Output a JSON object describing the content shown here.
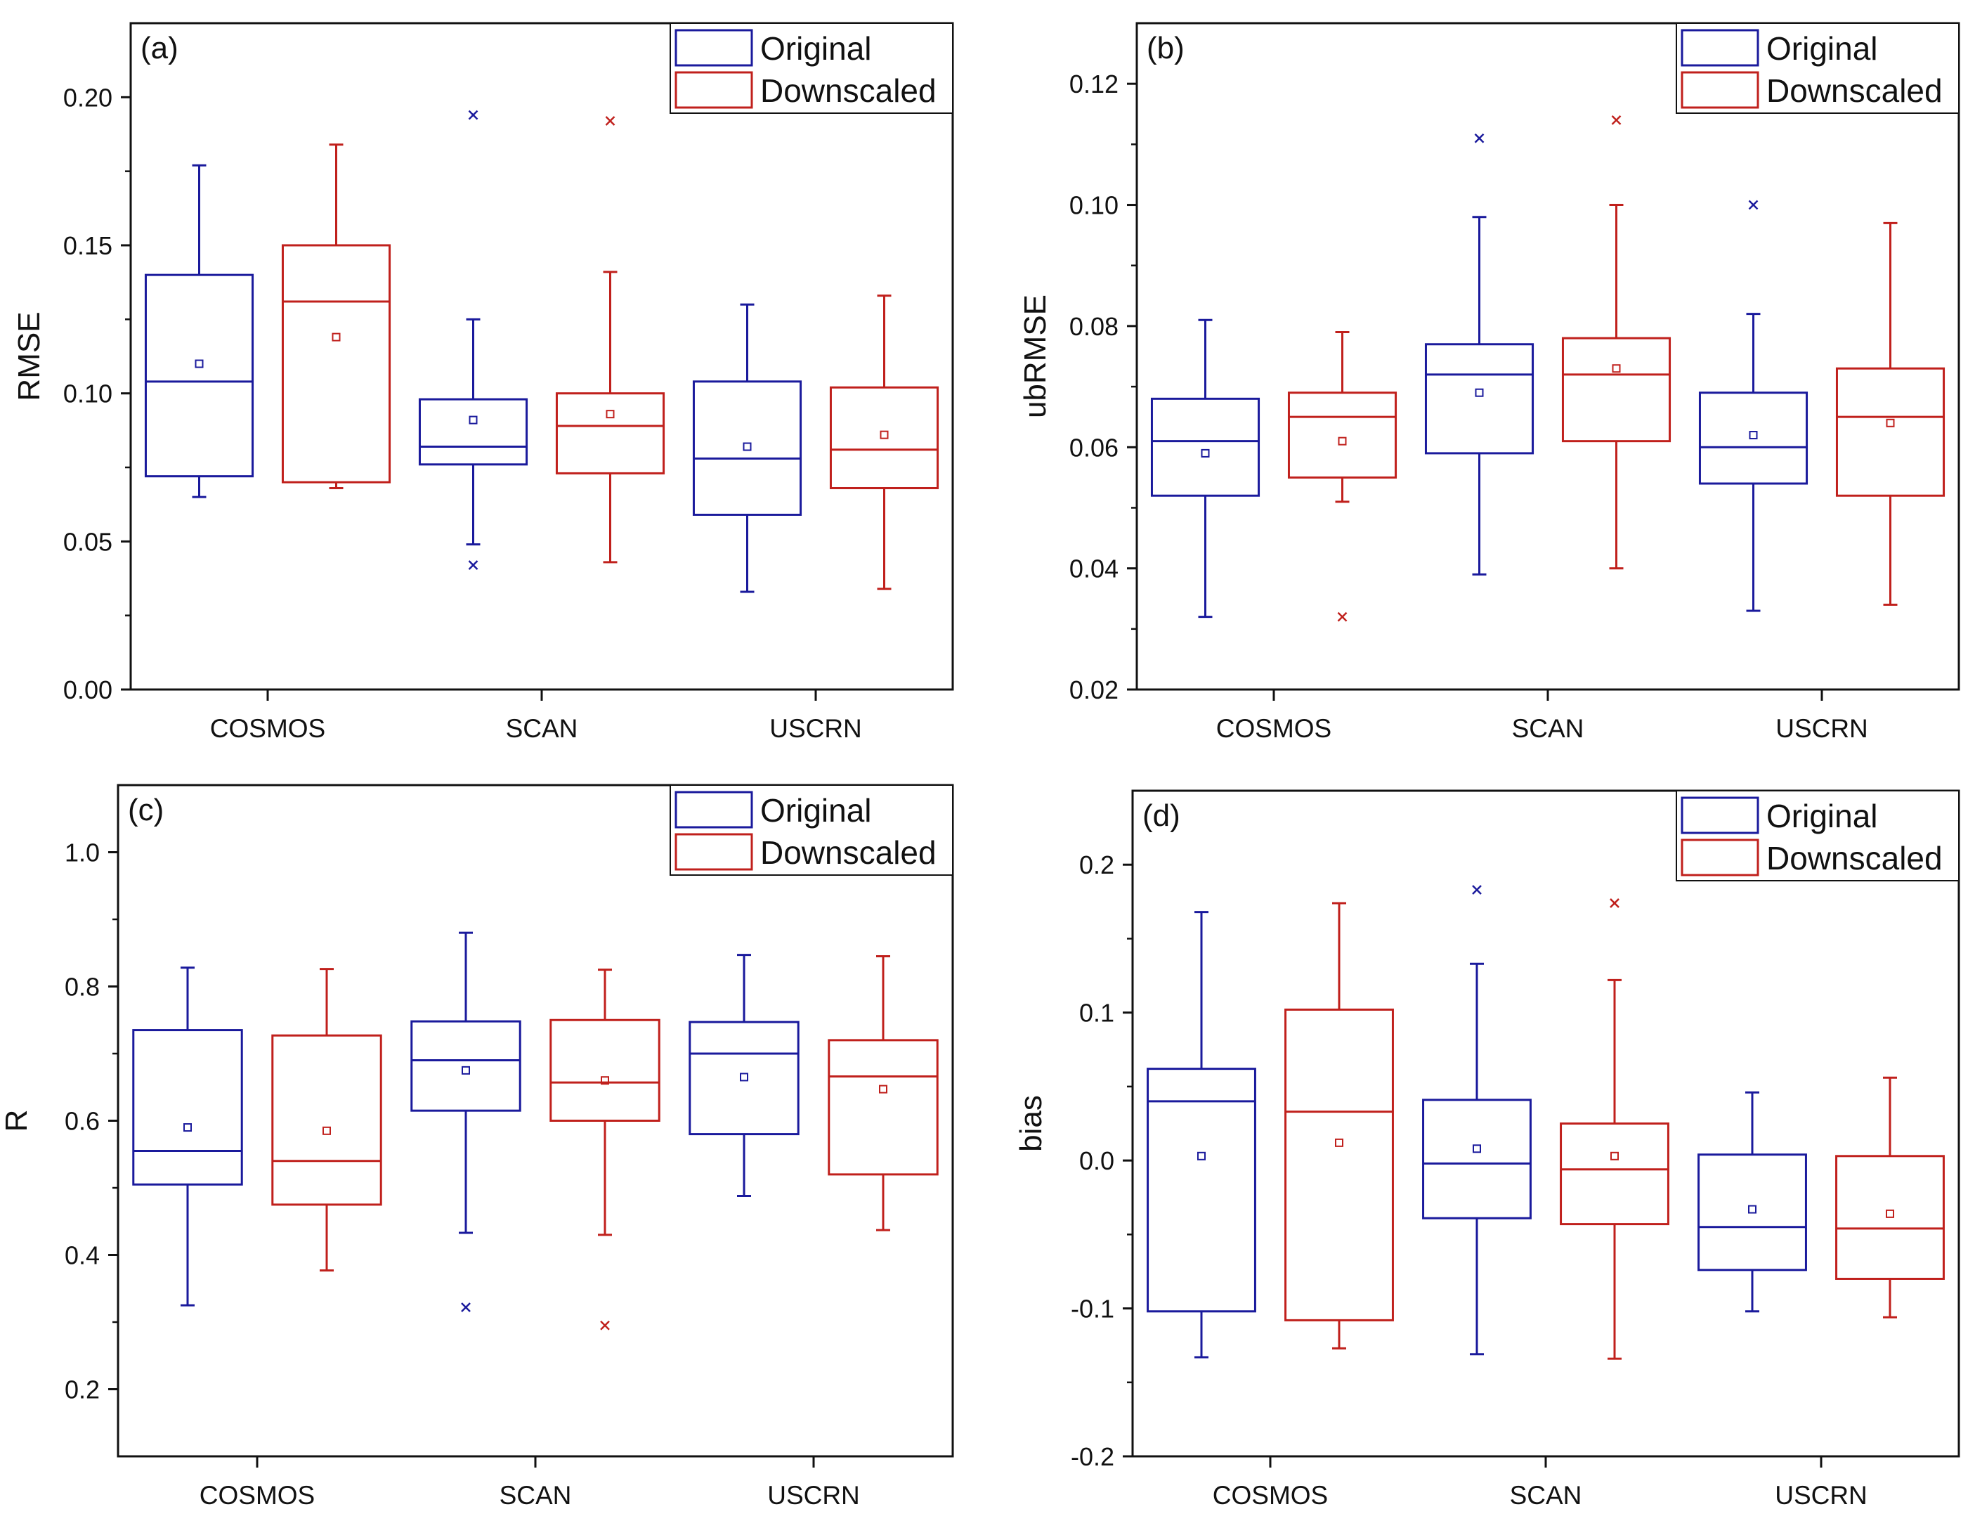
{
  "colors": {
    "original": "#1a1a9c",
    "downscaled": "#c0201c",
    "axis": "#111111"
  },
  "chart_data": [
    {
      "type": "box",
      "panel": "(a)",
      "ylabel": "RMSE",
      "ylim": [
        0,
        0.225
      ],
      "yticks": [
        0.0,
        0.05,
        0.1,
        0.15,
        0.2
      ],
      "ytick_labels": [
        "0.00",
        "0.05",
        "0.10",
        "0.15",
        "0.20"
      ],
      "categories": [
        "COSMOS",
        "SCAN",
        "USCRN"
      ],
      "legend": {
        "position": "top-right",
        "entries": [
          "Original",
          "Downscaled"
        ]
      },
      "series": [
        {
          "name": "Original",
          "boxes": [
            {
              "min": 0.065,
              "q1": 0.072,
              "median": 0.104,
              "q3": 0.14,
              "max": 0.177,
              "mean": 0.11,
              "outliers": []
            },
            {
              "min": 0.049,
              "q1": 0.076,
              "median": 0.082,
              "q3": 0.098,
              "max": 0.125,
              "mean": 0.091,
              "outliers": [
                0.194,
                0.042
              ]
            },
            {
              "min": 0.033,
              "q1": 0.059,
              "median": 0.078,
              "q3": 0.104,
              "max": 0.13,
              "mean": 0.082,
              "outliers": []
            }
          ]
        },
        {
          "name": "Downscaled",
          "boxes": [
            {
              "min": 0.068,
              "q1": 0.07,
              "median": 0.131,
              "q3": 0.15,
              "max": 0.184,
              "mean": 0.119,
              "outliers": []
            },
            {
              "min": 0.043,
              "q1": 0.073,
              "median": 0.089,
              "q3": 0.1,
              "max": 0.141,
              "mean": 0.093,
              "outliers": [
                0.192
              ]
            },
            {
              "min": 0.034,
              "q1": 0.068,
              "median": 0.081,
              "q3": 0.102,
              "max": 0.133,
              "mean": 0.086,
              "outliers": []
            }
          ]
        }
      ]
    },
    {
      "type": "box",
      "panel": "(b)",
      "ylabel": "ubRMSE",
      "ylim": [
        0.02,
        0.13
      ],
      "yticks": [
        0.02,
        0.04,
        0.06,
        0.08,
        0.1,
        0.12
      ],
      "ytick_labels": [
        "0.02",
        "0.04",
        "0.06",
        "0.08",
        "0.10",
        "0.12"
      ],
      "categories": [
        "COSMOS",
        "SCAN",
        "USCRN"
      ],
      "legend": {
        "position": "top-right",
        "entries": [
          "Original",
          "Downscaled"
        ]
      },
      "series": [
        {
          "name": "Original",
          "boxes": [
            {
              "min": 0.032,
              "q1": 0.052,
              "median": 0.061,
              "q3": 0.068,
              "max": 0.081,
              "mean": 0.059,
              "outliers": []
            },
            {
              "min": 0.039,
              "q1": 0.059,
              "median": 0.072,
              "q3": 0.077,
              "max": 0.098,
              "mean": 0.069,
              "outliers": [
                0.111
              ]
            },
            {
              "min": 0.033,
              "q1": 0.054,
              "median": 0.06,
              "q3": 0.069,
              "max": 0.082,
              "mean": 0.062,
              "outliers": [
                0.1
              ]
            }
          ]
        },
        {
          "name": "Downscaled",
          "boxes": [
            {
              "min": 0.051,
              "q1": 0.055,
              "median": 0.065,
              "q3": 0.069,
              "max": 0.079,
              "mean": 0.061,
              "outliers": [
                0.032
              ]
            },
            {
              "min": 0.04,
              "q1": 0.061,
              "median": 0.072,
              "q3": 0.078,
              "max": 0.1,
              "mean": 0.073,
              "outliers": [
                0.114
              ]
            },
            {
              "min": 0.034,
              "q1": 0.052,
              "median": 0.065,
              "q3": 0.073,
              "max": 0.097,
              "mean": 0.064,
              "outliers": []
            }
          ]
        }
      ]
    },
    {
      "type": "box",
      "panel": "(c)",
      "ylabel": "R",
      "ylim": [
        0.1,
        1.1
      ],
      "yticks": [
        0.2,
        0.4,
        0.6,
        0.8,
        1.0
      ],
      "ytick_labels": [
        "0.2",
        "0.4",
        "0.6",
        "0.8",
        "1.0"
      ],
      "categories": [
        "COSMOS",
        "SCAN",
        "USCRN"
      ],
      "legend": {
        "position": "top-right",
        "entries": [
          "Original",
          "Downscaled"
        ]
      },
      "series": [
        {
          "name": "Original",
          "boxes": [
            {
              "min": 0.325,
              "q1": 0.505,
              "median": 0.555,
              "q3": 0.735,
              "max": 0.828,
              "mean": 0.59,
              "outliers": []
            },
            {
              "min": 0.433,
              "q1": 0.615,
              "median": 0.69,
              "q3": 0.748,
              "max": 0.88,
              "mean": 0.675,
              "outliers": [
                0.322
              ]
            },
            {
              "min": 0.488,
              "q1": 0.58,
              "median": 0.7,
              "q3": 0.747,
              "max": 0.847,
              "mean": 0.665,
              "outliers": []
            }
          ]
        },
        {
          "name": "Downscaled",
          "boxes": [
            {
              "min": 0.377,
              "q1": 0.475,
              "median": 0.54,
              "q3": 0.727,
              "max": 0.826,
              "mean": 0.585,
              "outliers": []
            },
            {
              "min": 0.43,
              "q1": 0.6,
              "median": 0.657,
              "q3": 0.75,
              "max": 0.825,
              "mean": 0.66,
              "outliers": [
                0.295
              ]
            },
            {
              "min": 0.437,
              "q1": 0.52,
              "median": 0.666,
              "q3": 0.72,
              "max": 0.845,
              "mean": 0.647,
              "outliers": []
            }
          ]
        }
      ]
    },
    {
      "type": "box",
      "panel": "(d)",
      "ylabel": "bias",
      "ylim": [
        -0.2,
        0.25
      ],
      "yticks": [
        -0.2,
        -0.1,
        0.0,
        0.1,
        0.2
      ],
      "ytick_labels": [
        "-0.2",
        "-0.1",
        "0.0",
        "0.1",
        "0.2"
      ],
      "categories": [
        "COSMOS",
        "SCAN",
        "USCRN"
      ],
      "legend": {
        "position": "top-right",
        "entries": [
          "Original",
          "Downscaled"
        ]
      },
      "series": [
        {
          "name": "Original",
          "boxes": [
            {
              "min": -0.133,
              "q1": -0.102,
              "median": 0.04,
              "q3": 0.062,
              "max": 0.168,
              "mean": 0.003,
              "outliers": []
            },
            {
              "min": -0.131,
              "q1": -0.039,
              "median": -0.002,
              "q3": 0.041,
              "max": 0.133,
              "mean": 0.008,
              "outliers": [
                0.183
              ]
            },
            {
              "min": -0.102,
              "q1": -0.074,
              "median": -0.045,
              "q3": 0.004,
              "max": 0.046,
              "mean": -0.033,
              "outliers": []
            }
          ]
        },
        {
          "name": "Downscaled",
          "boxes": [
            {
              "min": -0.127,
              "q1": -0.108,
              "median": 0.033,
              "q3": 0.102,
              "max": 0.174,
              "mean": 0.012,
              "outliers": []
            },
            {
              "min": -0.134,
              "q1": -0.043,
              "median": -0.006,
              "q3": 0.025,
              "max": 0.122,
              "mean": 0.003,
              "outliers": [
                0.174
              ]
            },
            {
              "min": -0.106,
              "q1": -0.08,
              "median": -0.046,
              "q3": 0.003,
              "max": 0.056,
              "mean": -0.036,
              "outliers": []
            }
          ]
        }
      ]
    }
  ]
}
